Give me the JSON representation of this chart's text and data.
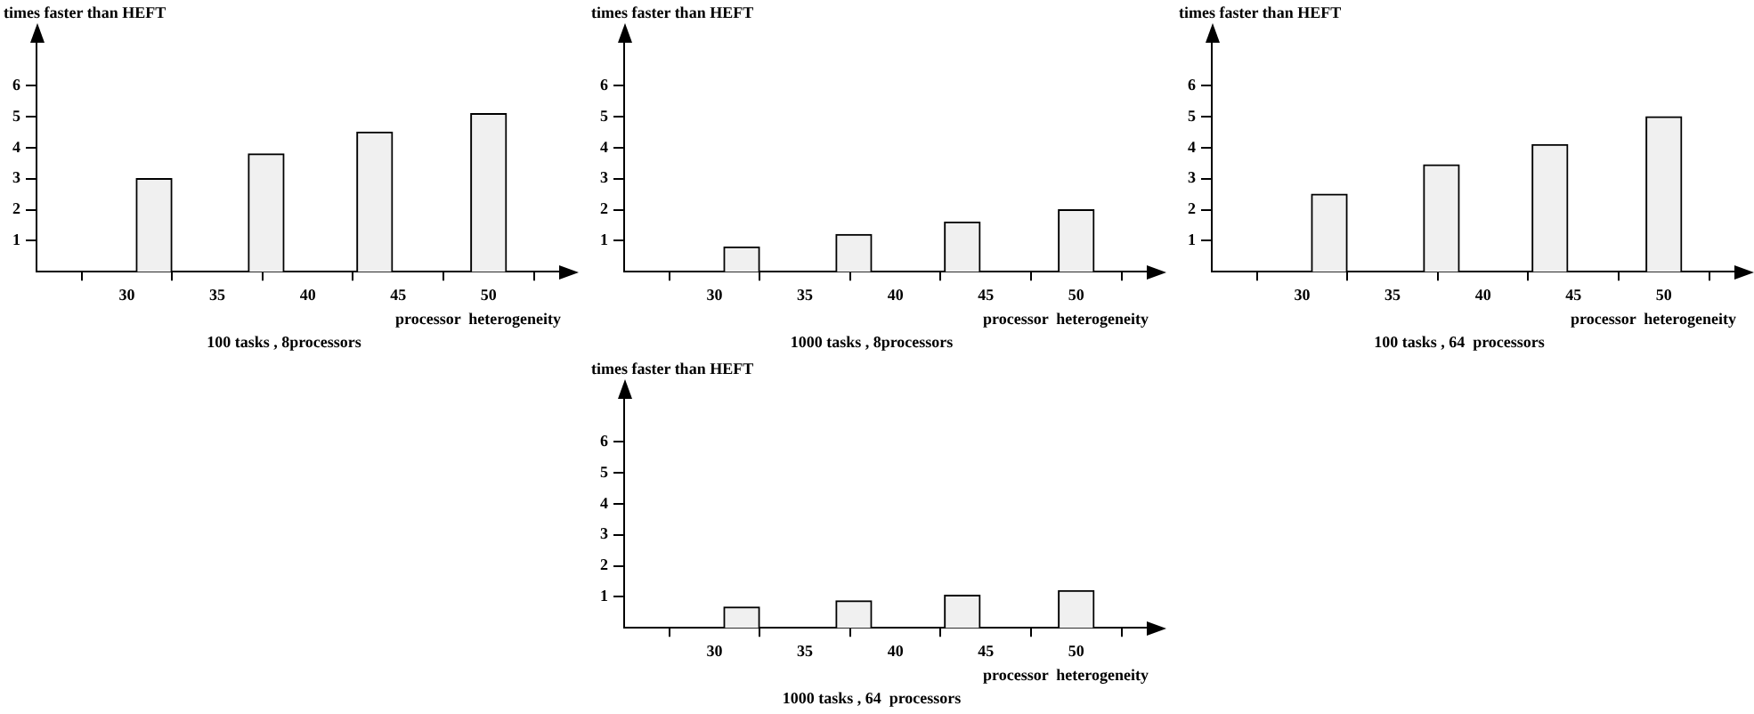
{
  "chart_data": [
    {
      "type": "bar",
      "title": "100 tasks , 8processors",
      "xlabel": "processor  heterogeneity",
      "ylabel": "times faster than HEFT",
      "x": [
        31.5,
        37.7,
        43.7,
        50
      ],
      "values": [
        3.0,
        3.8,
        4.5,
        5.1
      ],
      "color": "#f0f0f0",
      "xlim": [
        25,
        54
      ],
      "xticks": [
        30,
        35,
        40,
        45,
        50
      ],
      "ylim": [
        0,
        7.5
      ],
      "yticks": [
        1,
        2,
        3,
        4,
        5,
        6
      ],
      "grid": false
    },
    {
      "type": "bar",
      "title": "1000 tasks , 8processors",
      "xlabel": "processor  heterogeneity",
      "ylabel": "times faster than HEFT",
      "x": [
        31.5,
        37.7,
        43.7,
        50
      ],
      "values": [
        0.8,
        1.2,
        1.6,
        2.0
      ],
      "color": "#f0f0f0",
      "xlim": [
        25,
        54
      ],
      "xticks": [
        30,
        35,
        40,
        45,
        50
      ],
      "ylim": [
        0,
        7.5
      ],
      "yticks": [
        1,
        2,
        3,
        4,
        5,
        6
      ],
      "grid": false
    },
    {
      "type": "bar",
      "title": "100 tasks , 64  processors",
      "xlabel": "processor  heterogeneity",
      "ylabel": "times faster than HEFT",
      "x": [
        31.5,
        37.7,
        43.7,
        50
      ],
      "values": [
        2.5,
        3.45,
        4.1,
        5.0
      ],
      "color": "#f0f0f0",
      "xlim": [
        25,
        54
      ],
      "xticks": [
        30,
        35,
        40,
        45,
        50
      ],
      "ylim": [
        0,
        7.5
      ],
      "yticks": [
        1,
        2,
        3,
        4,
        5,
        6
      ],
      "grid": false
    },
    {
      "type": "bar",
      "title": "1000 tasks , 64  processors",
      "xlabel": "processor  heterogeneity",
      "ylabel": "times faster than HEFT",
      "x": [
        31.5,
        37.7,
        43.7,
        50
      ],
      "values": [
        0.67,
        0.87,
        1.05,
        1.2
      ],
      "color": "#f0f0f0",
      "xlim": [
        25,
        54
      ],
      "xticks": [
        30,
        35,
        40,
        45,
        50
      ],
      "ylim": [
        0,
        7.5
      ],
      "yticks": [
        1,
        2,
        3,
        4,
        5,
        6
      ],
      "grid": false
    }
  ]
}
